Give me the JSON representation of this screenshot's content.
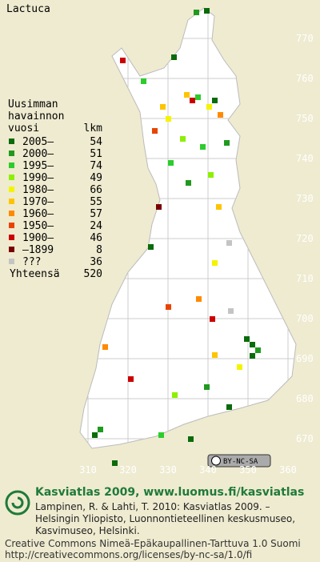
{
  "title": "Lactuca",
  "legend": {
    "header": [
      "Uusimman",
      "havainnon",
      "vuosi"
    ],
    "count_header": "lkm",
    "rows": [
      {
        "label": "2005–",
        "count": 54,
        "color": "#0a6b0a"
      },
      {
        "label": "2000–",
        "count": 51,
        "color": "#1f9a1f"
      },
      {
        "label": "1995–",
        "count": 74,
        "color": "#2ccc2c"
      },
      {
        "label": "1990–",
        "count": 49,
        "color": "#8cf000"
      },
      {
        "label": "1980–",
        "count": 66,
        "color": "#f4f400"
      },
      {
        "label": "1970–",
        "count": 55,
        "color": "#ffc400"
      },
      {
        "label": "1960–",
        "count": 57,
        "color": "#ff8a00"
      },
      {
        "label": "1950–",
        "count": 24,
        "color": "#e84400"
      },
      {
        "label": "1900–",
        "count": 46,
        "color": "#cc0000"
      },
      {
        "label": "–1899",
        "count": 8,
        "color": "#7a0000"
      },
      {
        "label": "???",
        "count": 36,
        "color": "#c4c4c4"
      }
    ],
    "total_label": "Yhteensä",
    "total": 520
  },
  "grid": {
    "yticks": [
      670,
      680,
      690,
      700,
      710,
      720,
      730,
      740,
      750,
      760,
      770
    ],
    "xticks": [
      310,
      320,
      330,
      340,
      350,
      360
    ]
  },
  "license_badge": "BY-NC-SA",
  "footer": {
    "heading": "Kasviatlas 2009, www.luomus.fi/kasviatlas",
    "citation": [
      "Lampinen, R. & Lahti, T. 2010: Kasviatlas 2009. –",
      "Helsingin Yliopisto, Luonnontieteellinen keskusmuseo,",
      "Kasvimuseo, Helsinki."
    ],
    "license": [
      "Creative Commons Nimeä-Epäkaupallinen-Tarttuva 1.0 Suomi",
      "http://creativecommons.org/licenses/by-nc-sa/1.0/fi"
    ]
  }
}
